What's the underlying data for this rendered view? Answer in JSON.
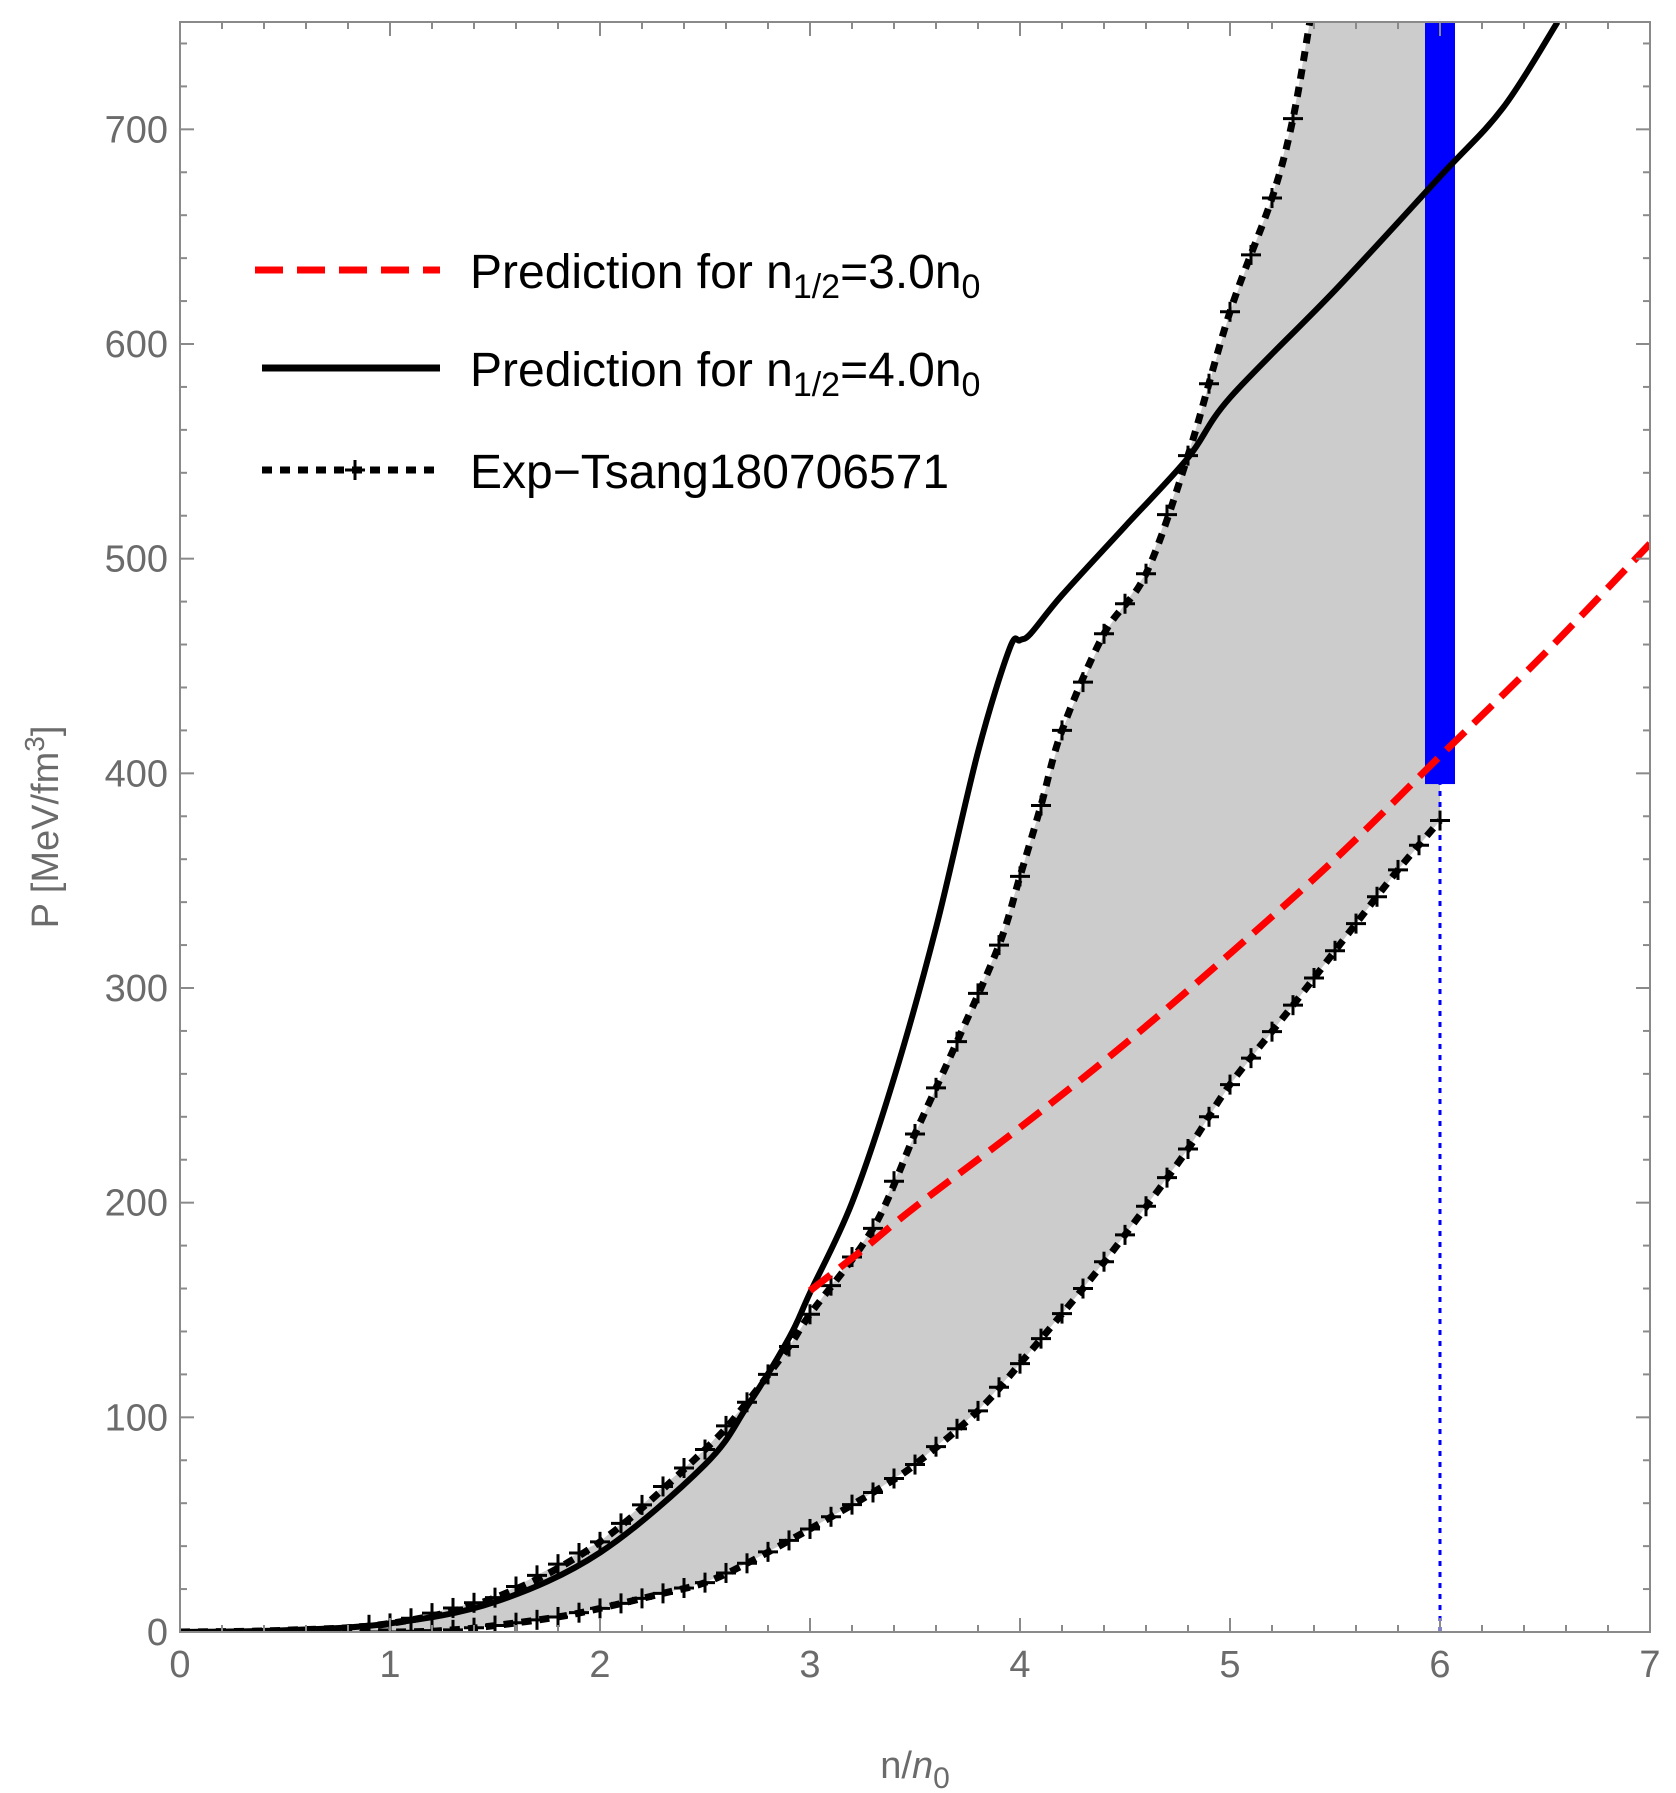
{
  "chart_data": {
    "type": "line",
    "title": "",
    "xlabel": {
      "base": "n/",
      "var": "n",
      "sub": "0"
    },
    "ylabel": {
      "base": "P [MeV/fm",
      "sup": "3",
      "end": "]"
    },
    "xlim": [
      0,
      7
    ],
    "ylim": [
      0,
      750
    ],
    "xticks": [
      "0",
      "1",
      "2",
      "3",
      "4",
      "5",
      "6",
      "7"
    ],
    "yticks": [
      "0",
      "100",
      "200",
      "300",
      "400",
      "500",
      "600",
      "700"
    ],
    "legend": {
      "position": "top-left",
      "entries": [
        {
          "series": "pred3",
          "text": "Prediction for n",
          "sub": "1/2",
          "rest": "=3.0n",
          "sub2": "0"
        },
        {
          "series": "pred4",
          "text": "Prediction for n",
          "sub": "1/2",
          "rest": "=4.0n",
          "sub2": "0"
        },
        {
          "series": "tsang",
          "text": "Exp−Tsang180706571"
        }
      ]
    },
    "colors": {
      "pred3": "#ff0000",
      "pred4": "#000000",
      "band_fill": "#cccccc",
      "band_edge": "#000000",
      "marker": "#0000ff"
    },
    "series": [
      {
        "id": "pred4",
        "name": "Prediction for n1/2=4.0n0",
        "style": "solid",
        "x": [
          0,
          0.5,
          1.0,
          1.5,
          2.0,
          2.5,
          2.7,
          2.9,
          3.0,
          3.2,
          3.4,
          3.6,
          3.8,
          3.95,
          4.0,
          4.05,
          4.2,
          4.5,
          4.8,
          5.0,
          5.5,
          6.0,
          6.3,
          6.56
        ],
        "y": [
          0,
          0.8,
          4,
          14,
          37,
          78,
          105,
          137,
          158,
          200,
          258,
          328,
          410,
          458,
          462,
          465,
          483,
          515,
          547,
          575,
          625,
          678,
          710,
          750
        ]
      },
      {
        "id": "pred3",
        "name": "Prediction for n1/2=3.0n0",
        "style": "dashed",
        "x": [
          3.0,
          3.25,
          3.5,
          4.0,
          4.5,
          5.0,
          5.5,
          6.0,
          6.5,
          7.0
        ],
        "y": [
          159,
          178,
          198,
          235,
          274,
          316,
          360,
          408,
          456,
          507
        ]
      },
      {
        "id": "tsang_upper",
        "name": "Exp-Tsang180706571 (upper)",
        "style": "dotted-markers",
        "x": [
          0,
          0.5,
          1.0,
          1.5,
          2.0,
          2.5,
          2.7,
          2.9,
          3.0,
          3.3,
          3.5,
          3.7,
          3.9,
          4.0,
          4.1,
          4.2,
          4.4,
          4.6,
          4.8,
          5.0,
          5.2,
          5.3,
          5.38
        ],
        "y": [
          0,
          0.8,
          4,
          16,
          42,
          85,
          107,
          133,
          148,
          188,
          232,
          275,
          320,
          352,
          385,
          420,
          465,
          493,
          548,
          615,
          668,
          705,
          750
        ]
      },
      {
        "id": "tsang_lower",
        "name": "Exp-Tsang180706571 (lower)",
        "style": "dotted-markers",
        "x": [
          0,
          1.0,
          1.3,
          1.5,
          1.8,
          2.0,
          2.3,
          2.5,
          2.7,
          3.0,
          3.3,
          3.5,
          3.8,
          4.0,
          4.3,
          4.5,
          4.8,
          5.0,
          5.3,
          5.6,
          5.8,
          6.0
        ],
        "y": [
          0,
          0,
          1,
          3,
          7,
          11,
          18,
          23,
          32,
          48,
          65,
          78,
          103,
          125,
          160,
          185,
          225,
          255,
          292,
          330,
          355,
          378
        ]
      }
    ],
    "annotations": [
      {
        "type": "vertical_bar",
        "x": 6.0,
        "y_from": 395,
        "y_to": 750,
        "color": "#0000ff"
      },
      {
        "type": "vertical_dotted_line",
        "x": 6.0,
        "y_from": 0,
        "y_to": 395,
        "color": "#0000ff"
      }
    ]
  }
}
